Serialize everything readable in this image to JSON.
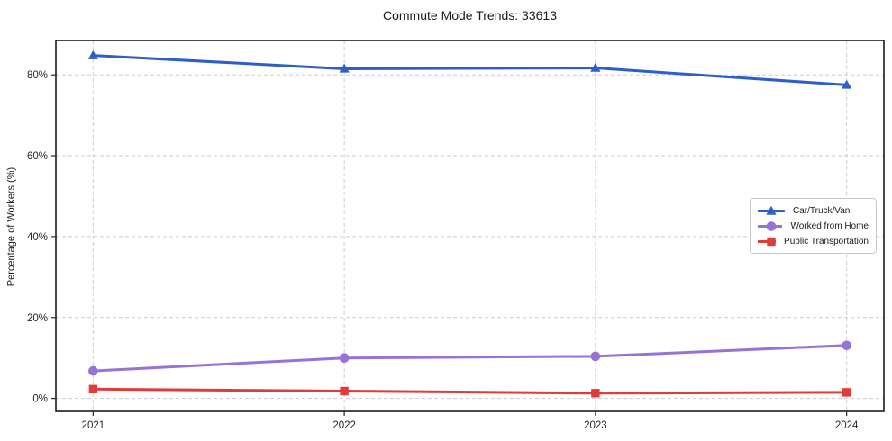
{
  "chart_data": {
    "type": "line",
    "title": "Commute Mode Trends: 33613",
    "xlabel": "",
    "ylabel": "Percentage of Workers (%)",
    "x": [
      2021,
      2022,
      2023,
      2024
    ],
    "x_tick_labels": [
      "2021",
      "2022",
      "2023",
      "2024"
    ],
    "y_ticks": [
      0,
      20,
      40,
      60,
      80
    ],
    "y_tick_labels": [
      "0%",
      "20%",
      "40%",
      "60%",
      "80%"
    ],
    "ylim": [
      -3.2,
      88.5
    ],
    "grid": true,
    "grid_style": "dashed",
    "legend_position": "center-right",
    "series": [
      {
        "name": "Car/Truck/Van",
        "marker": "triangle",
        "color": "#2d5fc6",
        "values": [
          84.8,
          81.5,
          81.7,
          77.5
        ]
      },
      {
        "name": "Worked from Home",
        "marker": "circle",
        "color": "#9673d4",
        "values": [
          6.8,
          10.0,
          10.4,
          13.1
        ]
      },
      {
        "name": "Public Transportation",
        "marker": "square",
        "color": "#e03c3c",
        "values": [
          2.3,
          1.8,
          1.3,
          1.5
        ]
      }
    ]
  },
  "colors": {
    "background": "#ffffff",
    "grid": "#cccccc",
    "axis_frame": "#1a1a1a",
    "tick_label": "#262626",
    "legend_border": "#c8c8c8"
  }
}
